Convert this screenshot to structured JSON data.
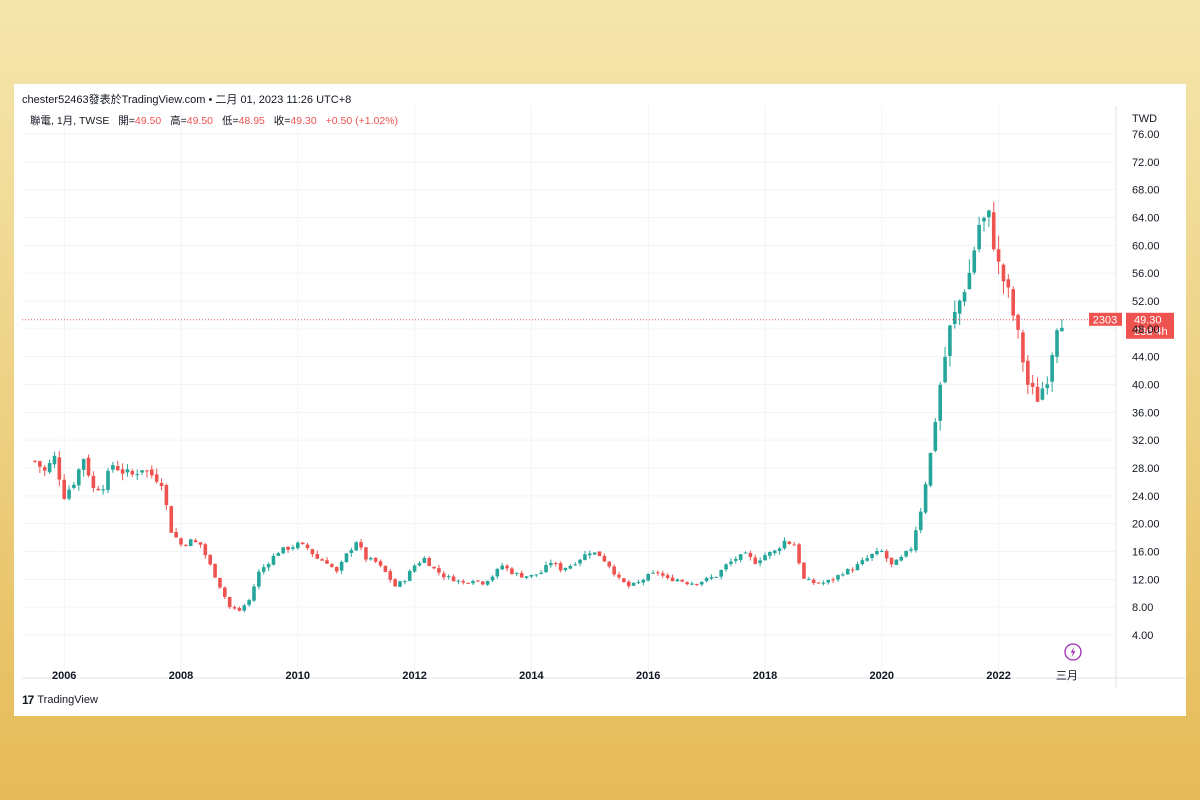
{
  "header": {
    "attribution": "chester52463發表於TradingView.com • 二月 01, 2023 11:26 UTC+8"
  },
  "legend": {
    "symbol": "聯電, 1月, TWSE",
    "open_label": "開=",
    "open_value": "49.50",
    "high_label": "高=",
    "high_value": "49.50",
    "low_label": "低=",
    "low_value": "48.95",
    "close_label": "收=",
    "close_value": "49.30",
    "change": "+0.50 (+1.02%)"
  },
  "price_tag": {
    "ticker": "2303",
    "price": "49.30",
    "countdown": "23d 4h"
  },
  "footer": {
    "brand": "TradingView",
    "brand_mark": "17"
  },
  "colors": {
    "up": "#26a69a",
    "down": "#ef5350",
    "grid": "#f0f3fa",
    "text": "#131722"
  },
  "icons": {
    "flash": "lightning-icon"
  },
  "chart_data": {
    "type": "candlestick",
    "currency": "TWD",
    "interval": "1月",
    "grid": true,
    "ylim": [
      0,
      78
    ],
    "y_ticks": [
      "4.00",
      "8.00",
      "12.00",
      "16.00",
      "20.00",
      "24.00",
      "28.00",
      "32.00",
      "36.00",
      "40.00",
      "44.00",
      "48.00",
      "52.00",
      "56.00",
      "60.00",
      "64.00",
      "68.00",
      "72.00",
      "76.00"
    ],
    "x_ticks": [
      "2006",
      "2008",
      "2010",
      "2012",
      "2014",
      "2016",
      "2018",
      "2020",
      "2022",
      "三月"
    ],
    "last_price": 49.3,
    "series": [
      {
        "date": "2005-07",
        "close": 29
      },
      {
        "date": "2005-09",
        "close": 27.5
      },
      {
        "date": "2005-11",
        "close": 29.5
      },
      {
        "date": "2006-01",
        "close": 24
      },
      {
        "date": "2006-03",
        "close": 26
      },
      {
        "date": "2006-05",
        "close": 29.5
      },
      {
        "date": "2006-07",
        "close": 25
      },
      {
        "date": "2006-09",
        "close": 25.5
      },
      {
        "date": "2006-11",
        "close": 28.5
      },
      {
        "date": "2007-01",
        "close": 27.5
      },
      {
        "date": "2007-03",
        "close": 27
      },
      {
        "date": "2007-05",
        "close": 28
      },
      {
        "date": "2007-07",
        "close": 27
      },
      {
        "date": "2007-09",
        "close": 26
      },
      {
        "date": "2007-11",
        "close": 19
      },
      {
        "date": "2008-01",
        "close": 17
      },
      {
        "date": "2008-03",
        "close": 17.5
      },
      {
        "date": "2008-05",
        "close": 17
      },
      {
        "date": "2008-07",
        "close": 14
      },
      {
        "date": "2008-09",
        "close": 11
      },
      {
        "date": "2008-11",
        "close": 8
      },
      {
        "date": "2009-01",
        "close": 7.5
      },
      {
        "date": "2009-03",
        "close": 9
      },
      {
        "date": "2009-05",
        "close": 13
      },
      {
        "date": "2009-07",
        "close": 14.5
      },
      {
        "date": "2009-09",
        "close": 16
      },
      {
        "date": "2009-11",
        "close": 16.5
      },
      {
        "date": "2010-01",
        "close": 17
      },
      {
        "date": "2010-03",
        "close": 16.5
      },
      {
        "date": "2010-05",
        "close": 15
      },
      {
        "date": "2010-07",
        "close": 14.5
      },
      {
        "date": "2010-09",
        "close": 13
      },
      {
        "date": "2010-11",
        "close": 15.5
      },
      {
        "date": "2011-01",
        "close": 17.5
      },
      {
        "date": "2011-03",
        "close": 15
      },
      {
        "date": "2011-05",
        "close": 14.5
      },
      {
        "date": "2011-07",
        "close": 13
      },
      {
        "date": "2011-09",
        "close": 11
      },
      {
        "date": "2011-11",
        "close": 12
      },
      {
        "date": "2012-01",
        "close": 14
      },
      {
        "date": "2012-03",
        "close": 15
      },
      {
        "date": "2012-05",
        "close": 13.5
      },
      {
        "date": "2012-07",
        "close": 12.5
      },
      {
        "date": "2012-09",
        "close": 12
      },
      {
        "date": "2012-11",
        "close": 11.5
      },
      {
        "date": "2013-01",
        "close": 12
      },
      {
        "date": "2013-03",
        "close": 11.5
      },
      {
        "date": "2013-05",
        "close": 12.5
      },
      {
        "date": "2013-07",
        "close": 14
      },
      {
        "date": "2013-09",
        "close": 13
      },
      {
        "date": "2013-11",
        "close": 12.5
      },
      {
        "date": "2014-01",
        "close": 12.5
      },
      {
        "date": "2014-03",
        "close": 13
      },
      {
        "date": "2014-05",
        "close": 14.5
      },
      {
        "date": "2014-07",
        "close": 13.5
      },
      {
        "date": "2014-09",
        "close": 14
      },
      {
        "date": "2014-11",
        "close": 15
      },
      {
        "date": "2015-01",
        "close": 16
      },
      {
        "date": "2015-03",
        "close": 15.5
      },
      {
        "date": "2015-05",
        "close": 14
      },
      {
        "date": "2015-07",
        "close": 12
      },
      {
        "date": "2015-09",
        "close": 11
      },
      {
        "date": "2015-11",
        "close": 11.5
      },
      {
        "date": "2016-01",
        "close": 12.5
      },
      {
        "date": "2016-03",
        "close": 13
      },
      {
        "date": "2016-05",
        "close": 12
      },
      {
        "date": "2016-07",
        "close": 12
      },
      {
        "date": "2016-09",
        "close": 11.5
      },
      {
        "date": "2016-11",
        "close": 11.5
      },
      {
        "date": "2017-01",
        "close": 12
      },
      {
        "date": "2017-03",
        "close": 12.5
      },
      {
        "date": "2017-05",
        "close": 14
      },
      {
        "date": "2017-07",
        "close": 15
      },
      {
        "date": "2017-09",
        "close": 15.5
      },
      {
        "date": "2017-11",
        "close": 14.5
      },
      {
        "date": "2018-01",
        "close": 15.5
      },
      {
        "date": "2018-03",
        "close": 16
      },
      {
        "date": "2018-05",
        "close": 17.5
      },
      {
        "date": "2018-07",
        "close": 17
      },
      {
        "date": "2018-09",
        "close": 12
      },
      {
        "date": "2018-11",
        "close": 11.5
      },
      {
        "date": "2019-01",
        "close": 11.5
      },
      {
        "date": "2019-03",
        "close": 12
      },
      {
        "date": "2019-05",
        "close": 13
      },
      {
        "date": "2019-07",
        "close": 13.5
      },
      {
        "date": "2019-09",
        "close": 14.5
      },
      {
        "date": "2019-11",
        "close": 15.5
      },
      {
        "date": "2020-01",
        "close": 16
      },
      {
        "date": "2020-03",
        "close": 14
      },
      {
        "date": "2020-05",
        "close": 15
      },
      {
        "date": "2020-07",
        "close": 16.5
      },
      {
        "date": "2020-09",
        "close": 22
      },
      {
        "date": "2020-11",
        "close": 30
      },
      {
        "date": "2021-01",
        "close": 40
      },
      {
        "date": "2021-03",
        "close": 48
      },
      {
        "date": "2021-05",
        "close": 52
      },
      {
        "date": "2021-07",
        "close": 56
      },
      {
        "date": "2021-09",
        "close": 63
      },
      {
        "date": "2021-11",
        "close": 64
      },
      {
        "date": "2022-01",
        "close": 57
      },
      {
        "date": "2022-03",
        "close": 53
      },
      {
        "date": "2022-05",
        "close": 47
      },
      {
        "date": "2022-07",
        "close": 40
      },
      {
        "date": "2022-09",
        "close": 38
      },
      {
        "date": "2022-11",
        "close": 41
      },
      {
        "date": "2023-01",
        "close": 48.8
      },
      {
        "date": "2023-02",
        "close": 49.3
      }
    ]
  }
}
